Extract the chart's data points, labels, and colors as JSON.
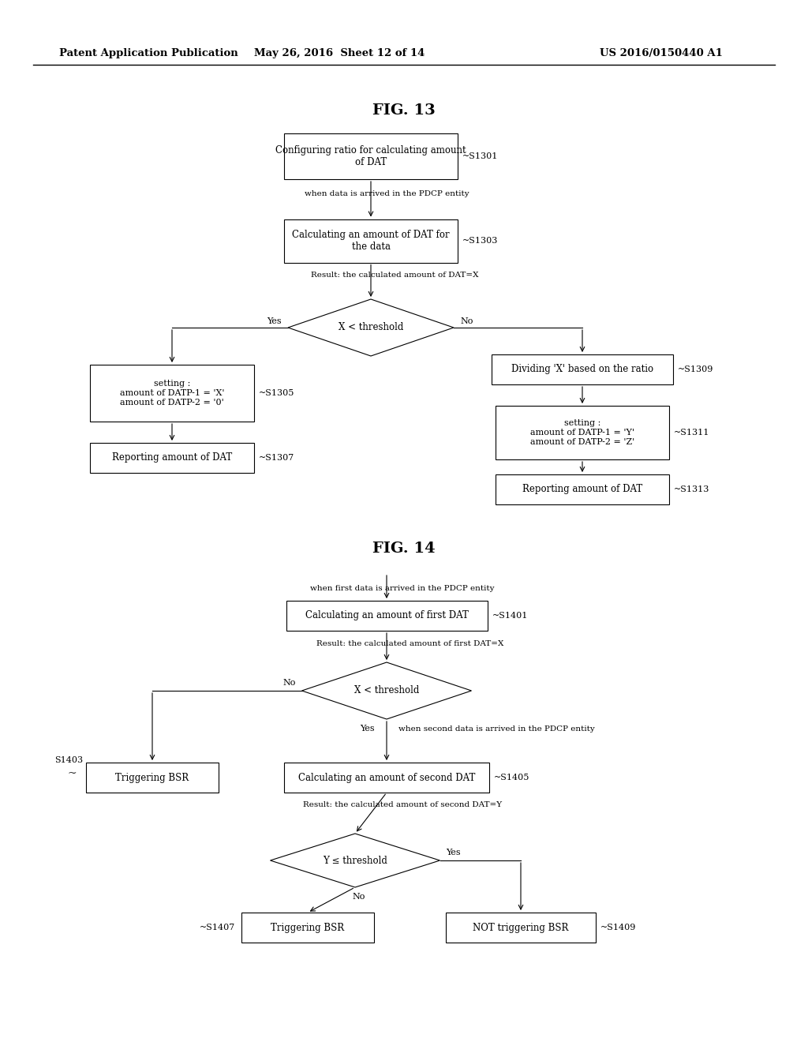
{
  "background_color": "#ffffff",
  "header_left": "Patent Application Publication",
  "header_mid": "May 26, 2016  Sheet 12 of 14",
  "header_right": "US 2016/0150440 A1",
  "fig13_title": "FIG. 13",
  "fig14_title": "FIG. 14"
}
